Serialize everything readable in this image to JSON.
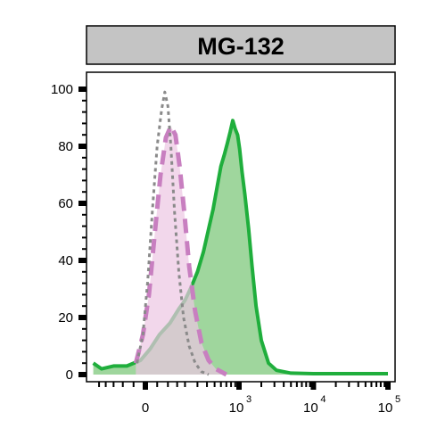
{
  "chart_data": {
    "type": "area",
    "title": "MG-132",
    "xlabel": "",
    "ylabel": "",
    "x_scale": "biexponential",
    "xlim": [
      -300,
      100000
    ],
    "ylim": [
      0,
      100
    ],
    "grid": false,
    "legend": "none",
    "y_ticks": [
      {
        "value": 0,
        "label": "0"
      },
      {
        "value": 20,
        "label": "20"
      },
      {
        "value": 40,
        "label": "40"
      },
      {
        "value": 60,
        "label": "60"
      },
      {
        "value": 80,
        "label": "80"
      },
      {
        "value": 100,
        "label": "100"
      }
    ],
    "x_ticks": [
      {
        "value": 0,
        "base": "0",
        "exp": ""
      },
      {
        "value": 1000,
        "base": "10",
        "exp": "3"
      },
      {
        "value": 10000,
        "base": "10",
        "exp": "4"
      },
      {
        "value": 100000,
        "base": "10",
        "exp": "5"
      }
    ],
    "series": [
      {
        "style": "green-solid",
        "color": "#1fae3c",
        "fill": "#8ecf8c",
        "x": [
          -300,
          -230,
          -150,
          -80,
          -20,
          20,
          60,
          110,
          160,
          200,
          250,
          300,
          360,
          420,
          480,
          540,
          600,
          660,
          720,
          780,
          840,
          900,
          960,
          1020,
          1100,
          1200,
          1350,
          1500,
          1700,
          2000,
          2500,
          3200,
          5000,
          10000,
          100000
        ],
        "y": [
          4,
          2,
          3,
          3,
          5,
          9,
          14,
          18,
          23,
          26,
          31,
          36,
          43,
          51,
          58,
          66,
          73,
          77,
          81,
          85,
          89,
          86,
          84,
          79,
          71,
          63,
          51,
          38,
          24,
          12,
          4,
          1.5,
          0.5,
          0.3,
          0.3
        ]
      },
      {
        "style": "pink-dashed",
        "color": "#c87fc0",
        "fill": "#ecc6e3",
        "x": [
          -40,
          -10,
          15,
          40,
          65,
          90,
          115,
          140,
          165,
          195,
          230,
          280,
          340,
          420,
          520,
          700
        ],
        "y": [
          4,
          14,
          28,
          50,
          70,
          83,
          87,
          84,
          73,
          57,
          38,
          22,
          11,
          5,
          2,
          0
        ]
      },
      {
        "style": "gray-dotted",
        "color": "#8a8a8a",
        "fill": "",
        "x": [
          -35,
          -10,
          10,
          30,
          50,
          70,
          85,
          100,
          115,
          135,
          160,
          190,
          230,
          280,
          340,
          420
        ],
        "y": [
          4,
          14,
          33,
          58,
          80,
          93,
          99,
          94,
          80,
          57,
          36,
          20,
          10,
          4,
          1,
          0
        ]
      }
    ]
  }
}
